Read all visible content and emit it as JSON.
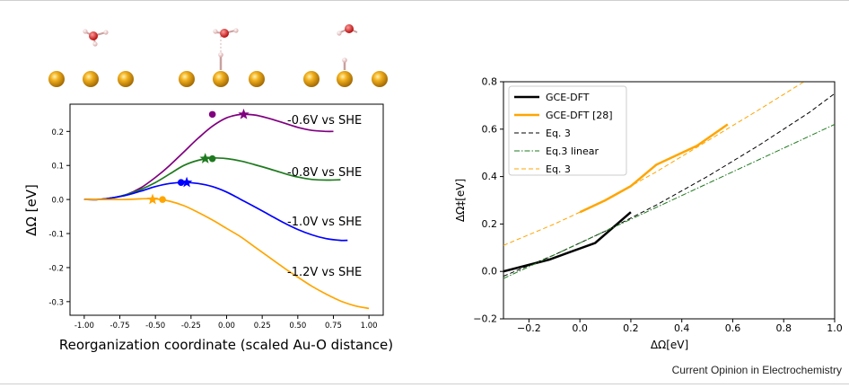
{
  "footer": "Current Opinion in Electrochemistry",
  "chart_data": [
    {
      "type": "line",
      "panel": "left",
      "xlabel": "Reorganization coordinate (scaled Au-O distance)",
      "ylabel": "ΔΩ [eV]",
      "xlim": [
        -1.1,
        1.1
      ],
      "ylim": [
        -0.34,
        0.28
      ],
      "xticks": [
        "-1.00",
        "-0.75",
        "-0.50",
        "-0.25",
        "0.00",
        "0.25",
        "0.50",
        "0.75",
        "1.00"
      ],
      "yticks": [
        "-0.3",
        "-0.2",
        "-0.1",
        "0.0",
        "0.1",
        "0.2"
      ],
      "grid": false,
      "series": [
        {
          "name": "-0.6V vs SHE",
          "color": "#800080",
          "x": [
            -1.0,
            -0.9,
            -0.8,
            -0.7,
            -0.6,
            -0.5,
            -0.4,
            -0.3,
            -0.2,
            -0.1,
            0.0,
            0.1,
            0.2,
            0.3,
            0.4,
            0.5,
            0.6,
            0.7,
            0.75
          ],
          "y": [
            0.0,
            0.0,
            0.005,
            0.015,
            0.035,
            0.065,
            0.1,
            0.14,
            0.18,
            0.215,
            0.24,
            0.25,
            0.248,
            0.238,
            0.225,
            0.212,
            0.203,
            0.2,
            0.2
          ],
          "star": [
            0.12,
            0.25
          ],
          "dot": [
            -0.1,
            0.25
          ]
        },
        {
          "name": "-0.8V vs SHE",
          "color": "#1f7a1f",
          "x": [
            -1.0,
            -0.9,
            -0.8,
            -0.7,
            -0.6,
            -0.5,
            -0.4,
            -0.3,
            -0.2,
            -0.1,
            0.0,
            0.1,
            0.2,
            0.3,
            0.4,
            0.5,
            0.6,
            0.7,
            0.8
          ],
          "y": [
            0.0,
            0.0,
            0.005,
            0.015,
            0.03,
            0.05,
            0.075,
            0.1,
            0.115,
            0.122,
            0.12,
            0.113,
            0.102,
            0.09,
            0.077,
            0.066,
            0.059,
            0.057,
            0.058
          ],
          "star": [
            -0.15,
            0.12
          ],
          "dot": [
            -0.1,
            0.12
          ]
        },
        {
          "name": "-1.0V vs SHE",
          "color": "#0000ff",
          "x": [
            -1.0,
            -0.9,
            -0.8,
            -0.7,
            -0.6,
            -0.5,
            -0.4,
            -0.3,
            -0.2,
            -0.1,
            0.0,
            0.1,
            0.2,
            0.3,
            0.4,
            0.5,
            0.6,
            0.7,
            0.8,
            0.85
          ],
          "y": [
            0.0,
            0.0,
            0.005,
            0.013,
            0.025,
            0.038,
            0.047,
            0.05,
            0.047,
            0.038,
            0.022,
            0.0,
            -0.022,
            -0.045,
            -0.068,
            -0.088,
            -0.104,
            -0.115,
            -0.12,
            -0.12
          ],
          "star": [
            -0.28,
            0.05
          ],
          "dot": [
            -0.32,
            0.05
          ]
        },
        {
          "name": "-1.2V vs SHE",
          "color": "#ffa500",
          "x": [
            -1.0,
            -0.9,
            -0.8,
            -0.7,
            -0.6,
            -0.5,
            -0.4,
            -0.3,
            -0.2,
            -0.1,
            0.0,
            0.1,
            0.2,
            0.3,
            0.4,
            0.5,
            0.6,
            0.7,
            0.8,
            0.9,
            1.0
          ],
          "y": [
            0.0,
            0.0,
            0.0,
            0.0,
            0.002,
            0.002,
            -0.005,
            -0.018,
            -0.038,
            -0.06,
            -0.085,
            -0.11,
            -0.14,
            -0.17,
            -0.2,
            -0.228,
            -0.255,
            -0.278,
            -0.298,
            -0.312,
            -0.32
          ],
          "star": [
            -0.52,
            0.0
          ],
          "dot": [
            -0.45,
            0.0
          ]
        }
      ]
    },
    {
      "type": "line",
      "panel": "right",
      "xlabel": "ΔΩ[eV]",
      "ylabel": "ΔΩ‡[eV]",
      "xlim": [
        -0.3,
        1.0
      ],
      "ylim": [
        -0.2,
        0.8
      ],
      "xticks": [
        "−0.2",
        "0.0",
        "0.2",
        "0.4",
        "0.6",
        "0.8",
        "1.0"
      ],
      "yticks": [
        "−0.2",
        "0.0",
        "0.2",
        "0.4",
        "0.6",
        "0.8"
      ],
      "grid": false,
      "legend": "top-left",
      "series": [
        {
          "name": "GCE-DFT",
          "color": "#000000",
          "style": "solid",
          "width": 2.5,
          "x": [
            -0.3,
            -0.12,
            0.06,
            0.2
          ],
          "y": [
            0.0,
            0.05,
            0.12,
            0.25
          ]
        },
        {
          "name": "GCE-DFT [28]",
          "color": "#ffa500",
          "style": "solid",
          "width": 2.5,
          "x": [
            0.0,
            0.1,
            0.2,
            0.3,
            0.46,
            0.58
          ],
          "y": [
            0.25,
            0.3,
            0.36,
            0.45,
            0.53,
            0.62
          ]
        },
        {
          "name": "Eq. 3",
          "color": "#000000",
          "style": "dashed",
          "width": 1,
          "x": [
            -0.3,
            -0.1,
            0.1,
            0.3,
            0.5,
            0.7,
            0.9,
            1.0
          ],
          "y": [
            -0.02,
            0.07,
            0.17,
            0.28,
            0.4,
            0.53,
            0.67,
            0.75
          ]
        },
        {
          "name": "Eq.3 linear",
          "color": "#1f7a1f",
          "style": "dashdot",
          "width": 1,
          "x": [
            -0.3,
            1.0
          ],
          "y": [
            -0.03,
            0.62
          ]
        },
        {
          "name": "Eq. 3",
          "color": "#ffa500",
          "style": "dashed",
          "width": 1,
          "x": [
            -0.3,
            -0.1,
            0.1,
            0.3,
            0.5,
            0.7,
            0.88
          ],
          "y": [
            0.11,
            0.2,
            0.3,
            0.42,
            0.55,
            0.68,
            0.8
          ]
        }
      ]
    }
  ]
}
